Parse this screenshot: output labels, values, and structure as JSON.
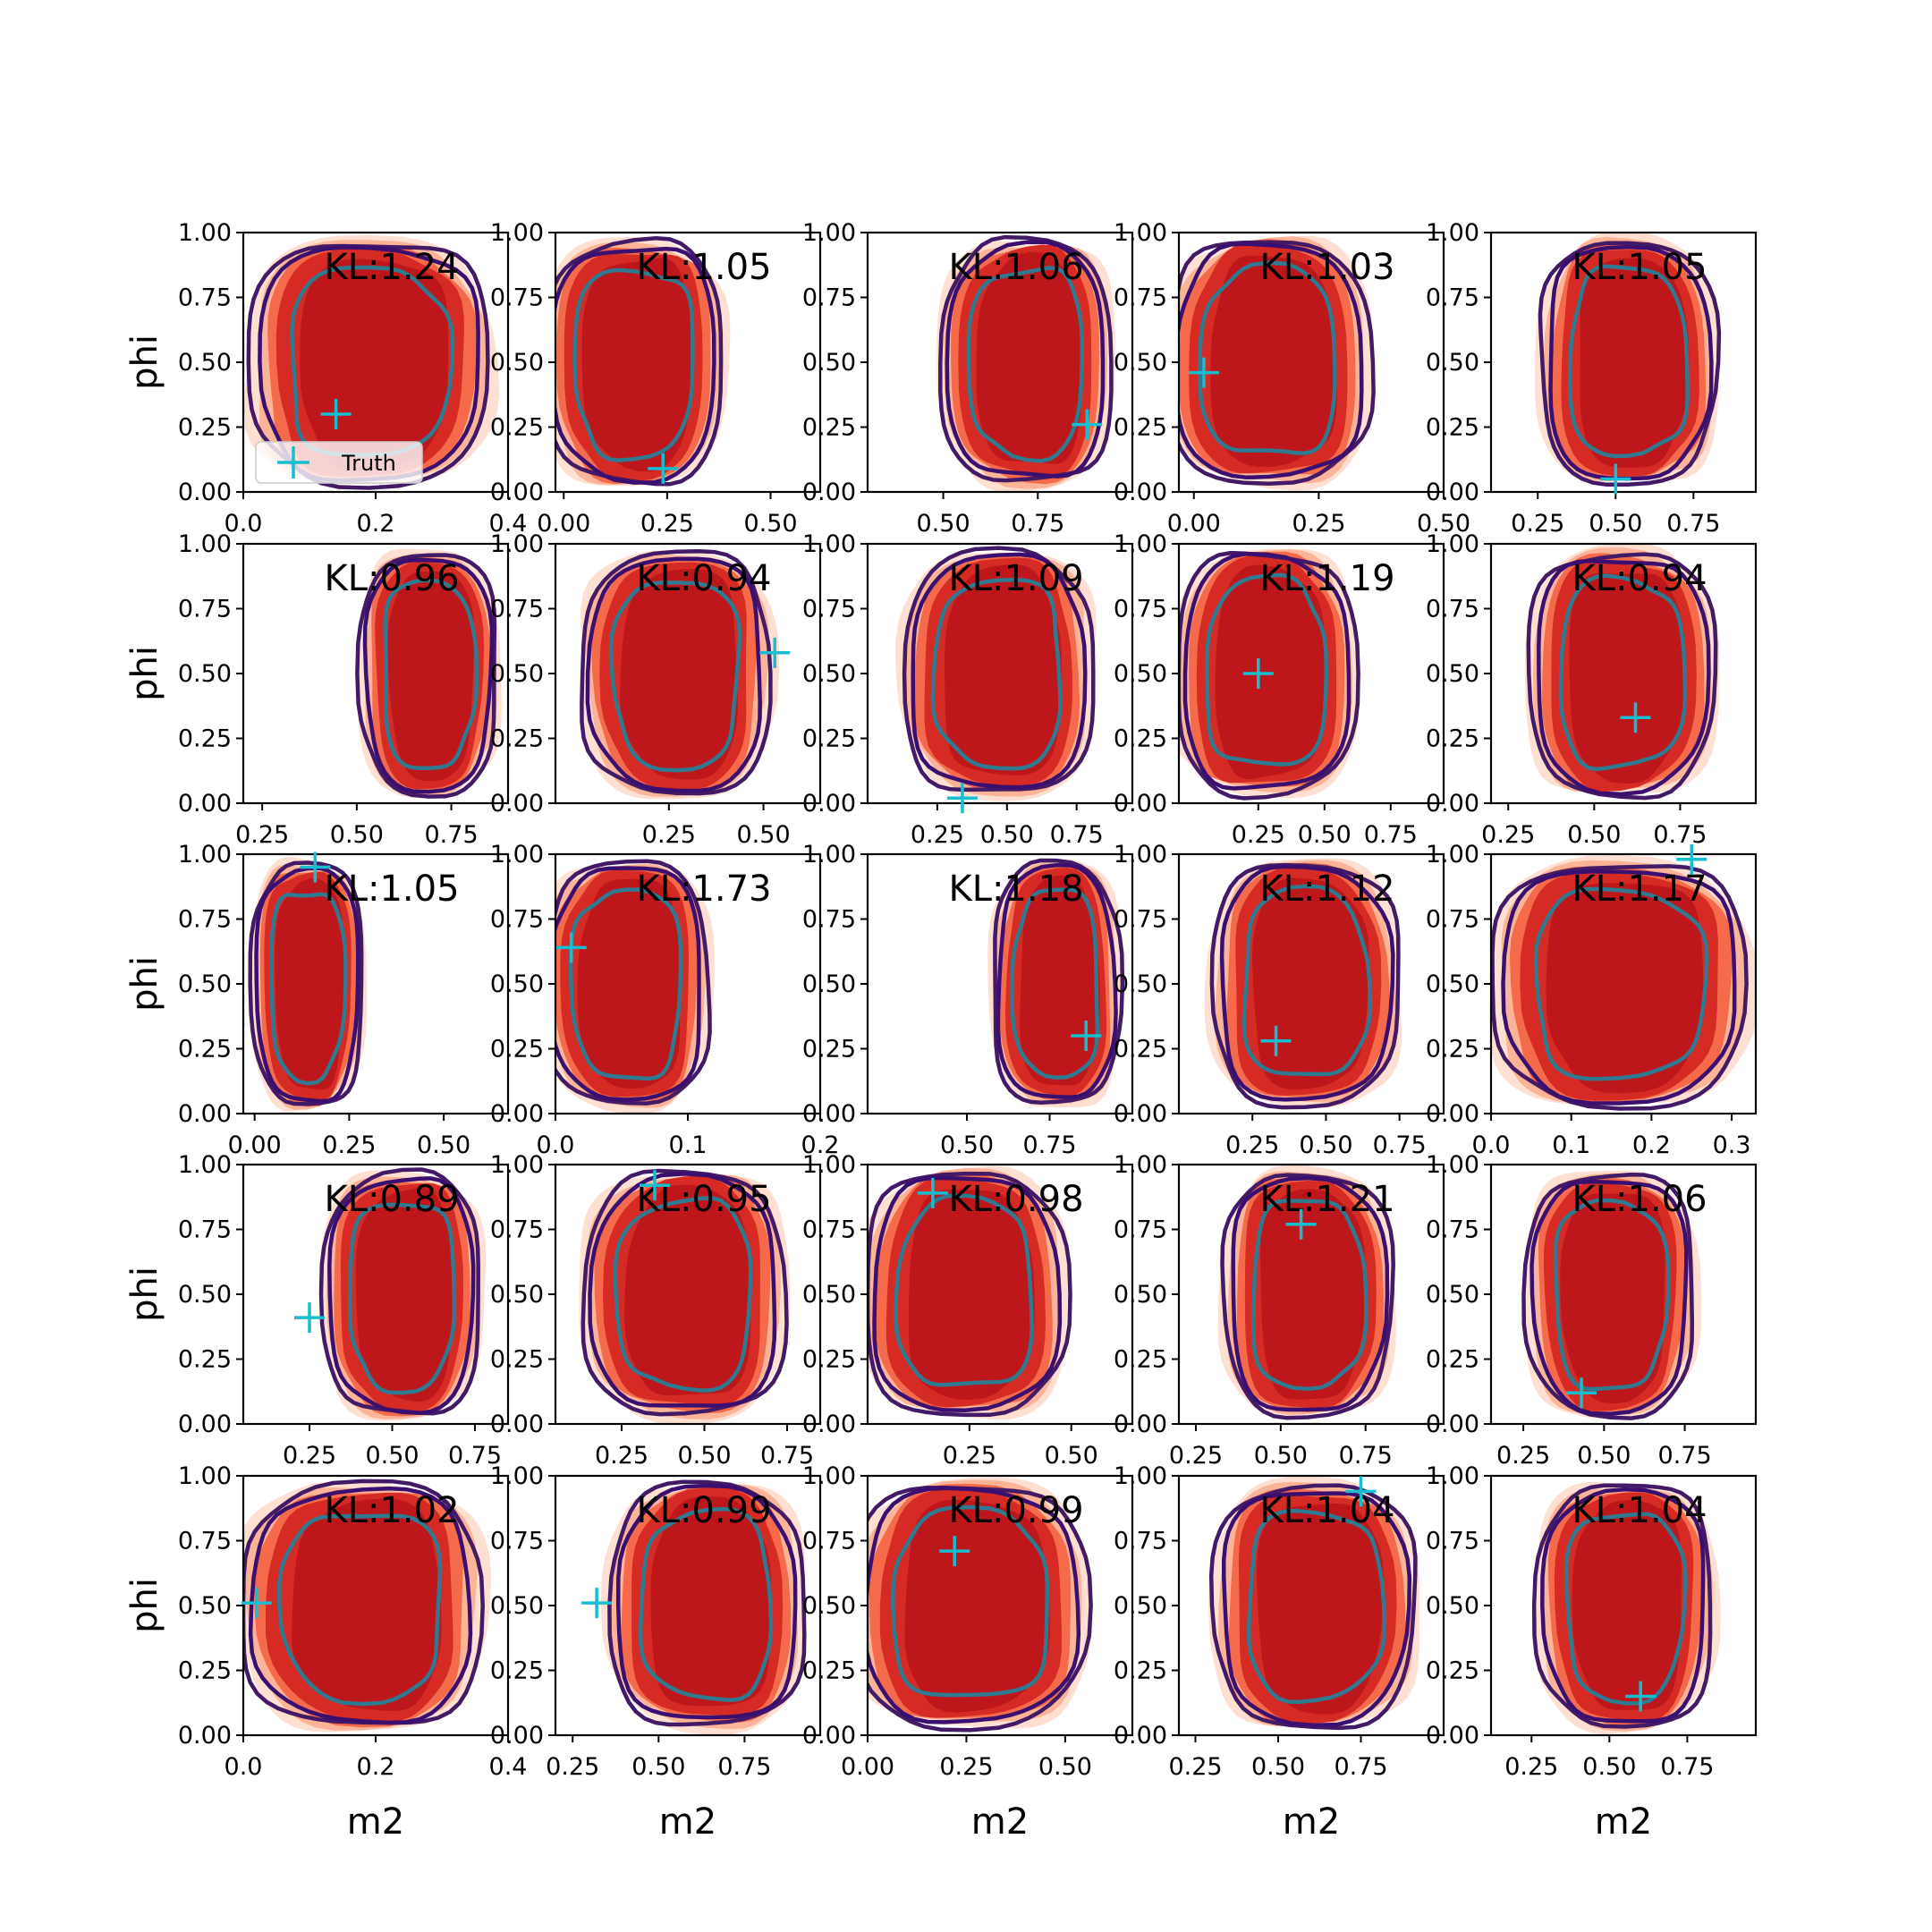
{
  "colors": {
    "fill_levels": [
      "#fde0d2",
      "#fbb497",
      "#f46a4a",
      "#d62a24",
      "#bd161b"
    ],
    "outer_contour": "#421a66",
    "mid_contour": "#3b0f70",
    "inner_contour": "#2f7a91",
    "truth_marker": "#17becf",
    "axes": "#000000"
  },
  "icons": {
    "truth": "plus-marker-icon"
  },
  "chart_data": {
    "type": "contour-grid",
    "rows": 5,
    "cols": 5,
    "ylabel": "phi",
    "xlabel": "m2",
    "yticks": [
      "0.00",
      "0.25",
      "0.50",
      "0.75",
      "1.00"
    ],
    "ylim": [
      0,
      1
    ],
    "legend": {
      "label": "Truth",
      "placement": "lower-left",
      "panel": 0
    },
    "panels": [
      {
        "kl": "KL:1.24",
        "xlim": [
          0,
          0.4
        ],
        "xticks": [
          [
            0,
            "0.0"
          ],
          [
            0.2,
            "0.2"
          ],
          [
            0.4,
            "0.4"
          ]
        ],
        "mean_x": 0.19,
        "wx": 0.16,
        "truth": [
          0.14,
          0.3
        ]
      },
      {
        "kl": "KL:1.05",
        "xlim": [
          -0.02,
          0.62
        ],
        "xticks": [
          [
            0,
            "0.00"
          ],
          [
            0.25,
            "0.25"
          ],
          [
            0.5,
            "0.50"
          ]
        ],
        "mean_x": 0.17,
        "wx": 0.19,
        "truth": [
          0.24,
          0.09
        ]
      },
      {
        "kl": "KL:1.06",
        "xlim": [
          0.3,
          1.0
        ],
        "xticks": [
          [
            0.5,
            "0.50"
          ],
          [
            0.75,
            "0.75"
          ]
        ],
        "mean_x": 0.72,
        "wx": 0.2,
        "truth": [
          0.88,
          0.26
        ]
      },
      {
        "kl": "KL:1.03",
        "xlim": [
          -0.03,
          0.5
        ],
        "xticks": [
          [
            0,
            "0.00"
          ],
          [
            0.25,
            "0.25"
          ],
          [
            0.5,
            "0.50"
          ]
        ],
        "mean_x": 0.15,
        "wx": 0.18,
        "truth": [
          0.02,
          0.46
        ]
      },
      {
        "kl": "KL:1.05",
        "xlim": [
          0.1,
          0.95
        ],
        "xticks": [
          [
            0.25,
            "0.25"
          ],
          [
            0.5,
            "0.50"
          ],
          [
            0.75,
            "0.75"
          ]
        ],
        "mean_x": 0.54,
        "wx": 0.25,
        "truth": [
          0.5,
          0.05
        ]
      },
      {
        "kl": "KL:0.96",
        "xlim": [
          0.2,
          0.9
        ],
        "xticks": [
          [
            0.25,
            "0.25"
          ],
          [
            0.5,
            "0.50"
          ],
          [
            0.75,
            "0.75"
          ]
        ],
        "mean_x": 0.69,
        "wx": 0.16,
        "truth": null
      },
      {
        "kl": "KL:0.94",
        "xlim": [
          -0.05,
          0.65
        ],
        "xticks": [
          [
            0.25,
            "0.25"
          ],
          [
            0.5,
            "0.50"
          ]
        ],
        "mean_x": 0.27,
        "wx": 0.22,
        "truth": [
          0.53,
          0.58
        ]
      },
      {
        "kl": "KL:1.09",
        "xlim": [
          0.0,
          0.95
        ],
        "xticks": [
          [
            0.25,
            "0.25"
          ],
          [
            0.5,
            "0.50"
          ],
          [
            0.75,
            "0.75"
          ]
        ],
        "mean_x": 0.47,
        "wx": 0.3,
        "truth": [
          0.34,
          0.02
        ]
      },
      {
        "kl": "KL:1.19",
        "xlim": [
          -0.05,
          0.95
        ],
        "xticks": [
          [
            0.25,
            "0.25"
          ],
          [
            0.5,
            "0.50"
          ],
          [
            0.75,
            "0.75"
          ]
        ],
        "mean_x": 0.28,
        "wx": 0.3,
        "truth": [
          0.25,
          0.5
        ]
      },
      {
        "kl": "KL:0.94",
        "xlim": [
          0.2,
          0.97
        ],
        "xticks": [
          [
            0.25,
            "0.25"
          ],
          [
            0.5,
            "0.50"
          ],
          [
            0.75,
            "0.75"
          ]
        ],
        "mean_x": 0.58,
        "wx": 0.24,
        "truth": [
          0.62,
          0.33
        ]
      },
      {
        "kl": "KL:1.05",
        "xlim": [
          -0.03,
          0.67
        ],
        "xticks": [
          [
            0,
            "0.00"
          ],
          [
            0.25,
            "0.25"
          ],
          [
            0.5,
            "0.50"
          ]
        ],
        "mean_x": 0.14,
        "wx": 0.13,
        "truth": [
          0.16,
          0.95
        ]
      },
      {
        "kl": "KL:1.73",
        "xlim": [
          0,
          0.2
        ],
        "xticks": [
          [
            0,
            "0.0"
          ],
          [
            0.1,
            "0.1"
          ],
          [
            0.2,
            "0.2"
          ]
        ],
        "mean_x": 0.054,
        "wx": 0.055,
        "truth": [
          0.012,
          0.64
        ]
      },
      {
        "kl": "KL:1.18",
        "xlim": [
          0.2,
          1.0
        ],
        "xticks": [
          [
            0.5,
            "0.50"
          ],
          [
            0.75,
            "0.75"
          ]
        ],
        "mean_x": 0.77,
        "wx": 0.17,
        "truth": [
          0.86,
          0.3
        ]
      },
      {
        "kl": "KL:1.12",
        "xlim": [
          0.0,
          0.9
        ],
        "xticks": [
          [
            0.25,
            "0.25"
          ],
          [
            0.5,
            "0.50"
          ],
          [
            0.75,
            "0.75"
          ]
        ],
        "mean_x": 0.43,
        "wx": 0.28,
        "truth": [
          0.33,
          0.28
        ]
      },
      {
        "kl": "KL:1.17",
        "xlim": [
          0,
          0.33
        ],
        "xticks": [
          [
            0,
            "0.0"
          ],
          [
            0.1,
            "0.1"
          ],
          [
            0.2,
            "0.2"
          ],
          [
            0.3,
            "0.3"
          ]
        ],
        "mean_x": 0.16,
        "wx": 0.14,
        "truth": [
          0.25,
          0.98
        ]
      },
      {
        "kl": "KL:0.89",
        "xlim": [
          0.05,
          0.85
        ],
        "xticks": [
          [
            0.25,
            "0.25"
          ],
          [
            0.5,
            "0.50"
          ],
          [
            0.75,
            "0.75"
          ]
        ],
        "mean_x": 0.53,
        "wx": 0.21,
        "truth": [
          0.25,
          0.41
        ]
      },
      {
        "kl": "KL:0.95",
        "xlim": [
          0.05,
          0.85
        ],
        "xticks": [
          [
            0.25,
            "0.25"
          ],
          [
            0.5,
            "0.50"
          ],
          [
            0.75,
            "0.75"
          ]
        ],
        "mean_x": 0.44,
        "wx": 0.27,
        "truth": [
          0.35,
          0.92
        ]
      },
      {
        "kl": "KL:0.98",
        "xlim": [
          0.0,
          0.65
        ],
        "xticks": [
          [
            0.25,
            "0.25"
          ],
          [
            0.5,
            "0.50"
          ]
        ],
        "mean_x": 0.24,
        "wx": 0.22,
        "truth": [
          0.16,
          0.89
        ]
      },
      {
        "kl": "KL:1.21",
        "xlim": [
          0.2,
          0.98
        ],
        "xticks": [
          [
            0.25,
            "0.25"
          ],
          [
            0.5,
            "0.50"
          ],
          [
            0.75,
            "0.75"
          ]
        ],
        "mean_x": 0.58,
        "wx": 0.22,
        "truth": [
          0.56,
          0.77
        ]
      },
      {
        "kl": "KL:1.06",
        "xlim": [
          0.15,
          0.97
        ],
        "xticks": [
          [
            0.25,
            "0.25"
          ],
          [
            0.5,
            "0.50"
          ],
          [
            0.75,
            "0.75"
          ]
        ],
        "mean_x": 0.52,
        "wx": 0.23,
        "truth": [
          0.43,
          0.12
        ]
      },
      {
        "kl": "KL:1.02",
        "xlim": [
          0,
          0.4
        ],
        "xticks": [
          [
            0,
            "0.0"
          ],
          [
            0.2,
            "0.2"
          ],
          [
            0.4,
            "0.4"
          ]
        ],
        "mean_x": 0.18,
        "wx": 0.16,
        "truth": [
          0.02,
          0.51
        ]
      },
      {
        "kl": "KL:0.99",
        "xlim": [
          0.2,
          0.97
        ],
        "xticks": [
          [
            0.25,
            "0.25"
          ],
          [
            0.5,
            "0.50"
          ],
          [
            0.75,
            "0.75"
          ]
        ],
        "mean_x": 0.64,
        "wx": 0.25,
        "truth": [
          0.32,
          0.51
        ]
      },
      {
        "kl": "KL:0.99",
        "xlim": [
          0.0,
          0.67
        ],
        "xticks": [
          [
            0,
            "0.00"
          ],
          [
            0.25,
            "0.25"
          ],
          [
            0.5,
            "0.50"
          ]
        ],
        "mean_x": 0.26,
        "wx": 0.26,
        "truth": [
          0.22,
          0.71
        ]
      },
      {
        "kl": "KL:1.04",
        "xlim": [
          0.2,
          1.0
        ],
        "xticks": [
          [
            0.25,
            "0.25"
          ],
          [
            0.5,
            "0.50"
          ],
          [
            0.75,
            "0.75"
          ]
        ],
        "mean_x": 0.61,
        "wx": 0.27,
        "truth": [
          0.75,
          0.94
        ]
      },
      {
        "kl": "KL:1.04",
        "xlim": [
          0.12,
          0.97
        ],
        "xticks": [
          [
            0.25,
            "0.25"
          ],
          [
            0.5,
            "0.50"
          ],
          [
            0.75,
            "0.75"
          ]
        ],
        "mean_x": 0.55,
        "wx": 0.25,
        "truth": [
          0.6,
          0.15
        ]
      }
    ]
  }
}
